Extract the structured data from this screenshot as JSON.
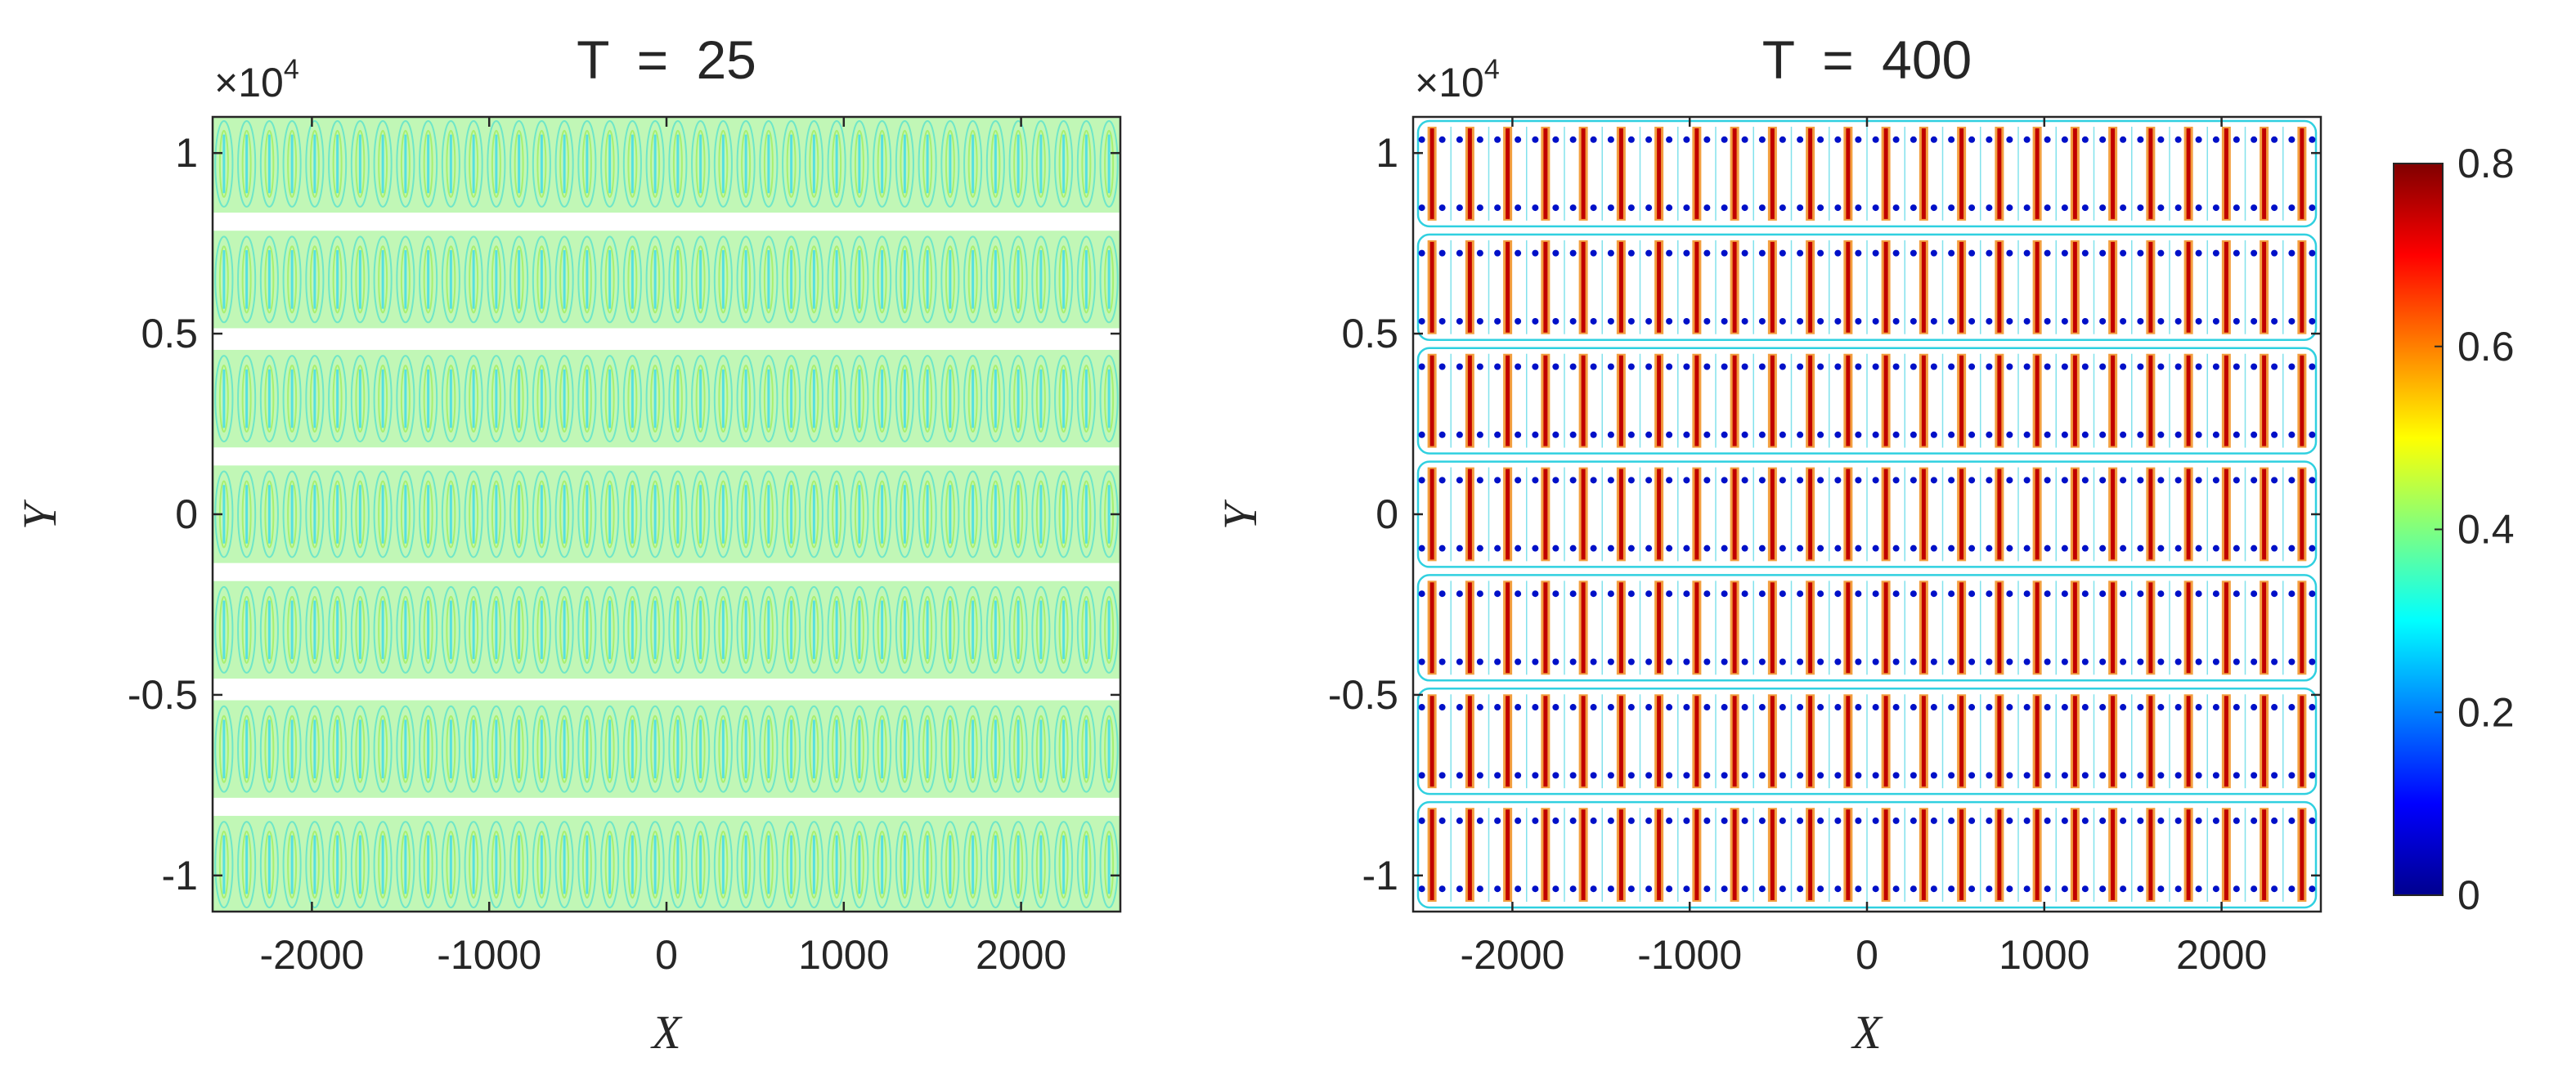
{
  "chart_data": [
    {
      "type": "contour",
      "title": "T = 25",
      "title_var": "T",
      "title_value": "25",
      "xlabel": "X",
      "ylabel": "Y",
      "xlim": [
        -2560,
        2560
      ],
      "ylim": [
        -1.1,
        1.1
      ],
      "y_exponent_label": "×10",
      "y_exponent": "4",
      "xticks": [
        -2000,
        -1000,
        0,
        1000,
        2000
      ],
      "xtick_labels": [
        "-2000",
        "-1000",
        "0",
        "1000",
        "2000"
      ],
      "yticks": [
        -1,
        -0.5,
        0,
        0.5,
        1
      ],
      "ytick_labels": [
        "-1",
        "-0.5",
        "0",
        "0.5",
        "1"
      ],
      "pattern": {
        "description_level": "uniform banded contours",
        "band_centers_y": [
          0.97,
          0.65,
          0.32,
          0.0,
          -0.32,
          -0.65,
          -0.97
        ],
        "band_halfwidth_y": 0.135,
        "columns": 40,
        "band_fill_color": "#8ef07a",
        "line_color": "#6fe6c8",
        "value_range": [
          0.3,
          0.45
        ]
      }
    },
    {
      "type": "contour",
      "title": "T = 400",
      "title_var": "T",
      "title_value": "400",
      "xlabel": "X",
      "ylabel": "Y",
      "xlim": [
        -2560,
        2560
      ],
      "ylim": [
        -1.1,
        1.1
      ],
      "y_exponent_label": "×10",
      "y_exponent": "4",
      "xticks": [
        -2000,
        -1000,
        0,
        1000,
        2000
      ],
      "xtick_labels": [
        "-2000",
        "-1000",
        "0",
        "1000",
        "2000"
      ],
      "yticks": [
        -1,
        -0.5,
        0,
        0.5,
        1
      ],
      "ytick_labels": [
        "-1",
        "-0.5",
        "0",
        "0.5",
        "1"
      ],
      "pattern": {
        "cell_rows": 7,
        "cell_columns": 24,
        "high_value_color": "#c00000",
        "mid_color": "#f08000",
        "low_value_color": "#0010c8",
        "outline_color": "#30d0e0",
        "value_range": [
          0,
          0.8
        ]
      }
    }
  ],
  "colorbar": {
    "min": 0,
    "max": 0.8,
    "ticks": [
      0,
      0.2,
      0.4,
      0.6,
      0.8
    ],
    "tick_labels": [
      "0",
      "0.2",
      "0.4",
      "0.6",
      "0.8"
    ],
    "colormap": "jet"
  }
}
